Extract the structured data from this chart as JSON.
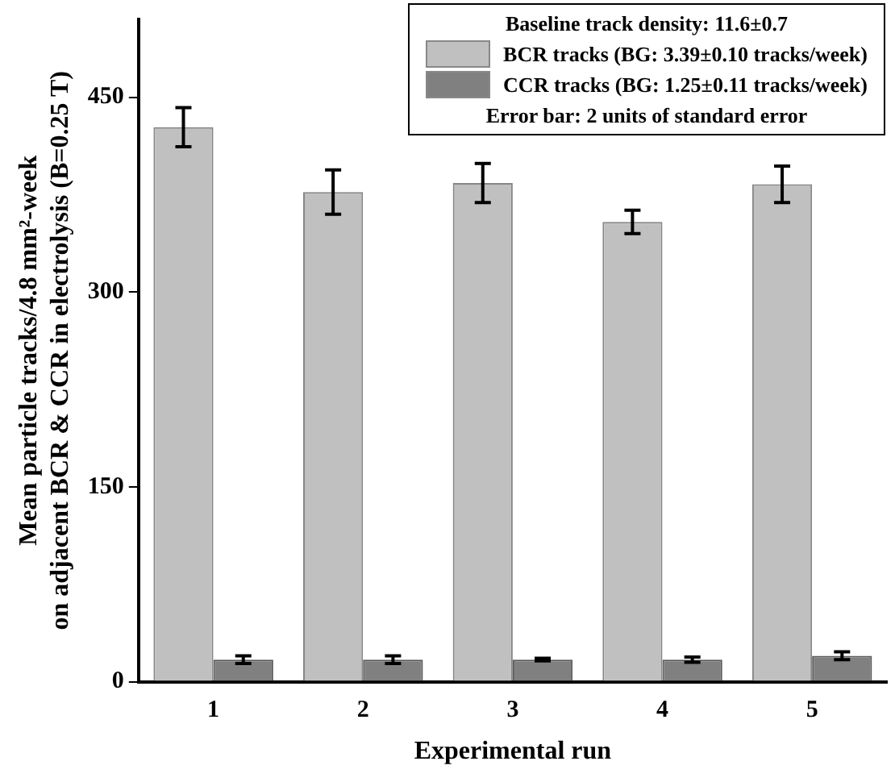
{
  "chart_data": {
    "type": "bar",
    "xlabel": "Experimental run",
    "ylabel": "Mean particle tracks/4.8 mm²-week\non adjacent BCR & CCR in electrolysis (B=0.25 T)",
    "legend_title": "Baseline track density: 11.6±0.7",
    "annotations": [
      "Error bar: 2 units of standard error"
    ],
    "categories": [
      "1",
      "2",
      "3",
      "4",
      "5"
    ],
    "series": [
      {
        "name": "BCR tracks (BG: 3.39±0.10 tracks/week)",
        "color": "#c0c0c0",
        "values": [
          427,
          377,
          384,
          354,
          383
        ],
        "errors": [
          15,
          17,
          15,
          9,
          14
        ]
      },
      {
        "name": "CCR tracks (BG: 1.25±0.11 tracks/week)",
        "color": "#808080",
        "values": [
          17,
          17,
          17,
          17,
          20
        ],
        "errors": [
          3,
          3,
          1,
          2,
          3
        ]
      }
    ],
    "ylim": [
      0,
      510
    ],
    "yticks": [
      0,
      150,
      300,
      450
    ],
    "grid": false,
    "legend": "top right"
  }
}
